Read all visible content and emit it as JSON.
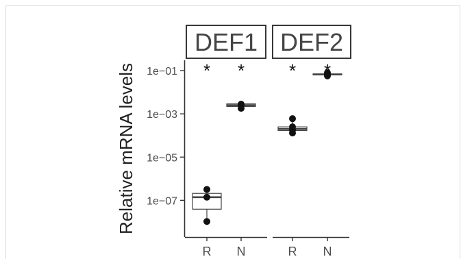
{
  "chart_data": {
    "type": "box",
    "ylabel": "Relative mRNA levels",
    "y_scale": "log10",
    "ylim": [
      2e-09,
      0.3
    ],
    "y_ticks": [
      0.1,
      0.001,
      1e-05,
      1e-07
    ],
    "y_tick_labels": [
      "1e−01",
      "1e−03",
      "1e−05",
      "1e−07"
    ],
    "panels": [
      {
        "title": "DEF1",
        "groups": [
          {
            "category": "R",
            "significance": "*",
            "box": {
              "q1": 3.9e-08,
              "median": 1.4e-07,
              "q3": 2.1e-07,
              "whisker_low": 1.05e-08,
              "whisker_high": 3.2e-07
            },
            "points": [
              3.2e-07,
              1.4e-07,
              1.05e-08
            ]
          },
          {
            "category": "N",
            "significance": "*",
            "box": {
              "q1": 0.0022,
              "median": 0.0025,
              "q3": 0.0029,
              "whisker_low": 0.0017,
              "whisker_high": 0.0031
            },
            "points": [
              0.0028,
              0.0025,
              0.0018
            ]
          }
        ]
      },
      {
        "title": "DEF2",
        "groups": [
          {
            "category": "R",
            "significance": "*",
            "box": {
              "q1": 0.00017,
              "median": 0.0002,
              "q3": 0.00025,
              "whisker_low": 0.00012,
              "whisker_high": 0.00055
            },
            "points": [
              0.0006,
              0.00025,
              0.00018,
              0.00013
            ]
          },
          {
            "category": "N",
            "significance": "*",
            "box": {
              "q1": 0.063,
              "median": 0.067,
              "q3": 0.07,
              "whisker_low": 0.055,
              "whisker_high": 0.08
            },
            "points": [
              0.08,
              0.068,
              0.057
            ]
          }
        ]
      }
    ],
    "colors": {
      "box": "#444444",
      "median": "#444444",
      "points": "#111111",
      "axis": "#333333",
      "text": "#4d4d4d"
    }
  }
}
